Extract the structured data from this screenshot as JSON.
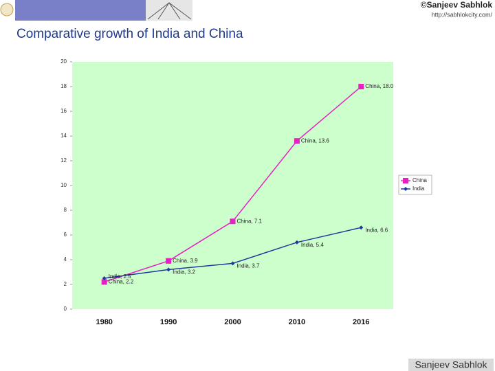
{
  "header": {
    "copyright": "©Sanjeev Sabhlok",
    "url": "http://sabhlokcity.com/"
  },
  "footer": {
    "brand": "Sanjeev Sabhlok"
  },
  "chart_data": {
    "type": "line",
    "title": "Comparative growth of India and China",
    "categories": [
      "1980",
      "1990",
      "2000",
      "2010",
      "2016"
    ],
    "series": [
      {
        "name": "China",
        "color": "#e81fc4",
        "marker": "square",
        "values": [
          2.2,
          3.9,
          7.1,
          13.6,
          18.0
        ],
        "value_labels": [
          "China, 2.2",
          "China, 3.9",
          "China, 7.1",
          "China, 13.6",
          "China, 18.0"
        ]
      },
      {
        "name": "India",
        "color": "#1f3a9e",
        "marker": "diamond",
        "values": [
          2.5,
          3.2,
          3.7,
          5.4,
          6.6
        ],
        "value_labels": [
          "India, 2.5",
          "India, 3.2",
          "India, 3.7",
          "India, 5.4",
          "India, 6.6"
        ]
      }
    ],
    "ylim": [
      0,
      20
    ],
    "yticks": [
      0,
      2,
      4,
      6,
      8,
      10,
      12,
      14,
      16,
      18,
      20
    ],
    "grid": false,
    "plot_background": "#ccffcc",
    "legend": "right"
  }
}
